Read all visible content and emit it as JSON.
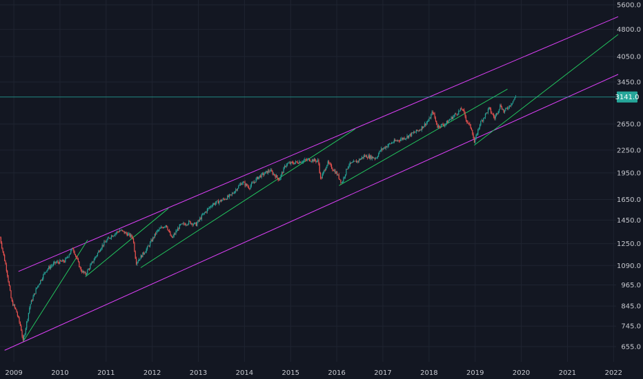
{
  "chart_data": {
    "type": "candlestick",
    "title": "",
    "xlabel": "",
    "ylabel": "",
    "y_scale": "log",
    "ylim": [
      630,
      5650
    ],
    "xlim": [
      2008.7,
      2022.1
    ],
    "grid": true,
    "background": "#131722",
    "x_ticks": [
      "2009",
      "2010",
      "2011",
      "2012",
      "2013",
      "2014",
      "2015",
      "2016",
      "2017",
      "2018",
      "2019",
      "2020",
      "2021",
      "2022"
    ],
    "y_ticks": [
      "655.0",
      "745.0",
      "845.0",
      "965.0",
      "1090.0",
      "1250.0",
      "1450.0",
      "1650.0",
      "1950.0",
      "2250.0",
      "2650.0",
      "3450.0",
      "4050.0",
      "4800.0",
      "5600.0"
    ],
    "current_price": {
      "label": "3141.0",
      "value": 3141,
      "color": "#26a69a"
    },
    "colors": {
      "up": "#26a69a",
      "down": "#ef5350",
      "channel": "#e040fb",
      "trend": "#22c55e"
    },
    "price_path": [
      [
        2008.7,
        1300
      ],
      [
        2008.85,
        1050
      ],
      [
        2008.95,
        870
      ],
      [
        2009.05,
        820
      ],
      [
        2009.15,
        740
      ],
      [
        2009.2,
        676
      ],
      [
        2009.35,
        850
      ],
      [
        2009.5,
        950
      ],
      [
        2009.7,
        1060
      ],
      [
        2009.9,
        1110
      ],
      [
        2010.1,
        1120
      ],
      [
        2010.28,
        1217
      ],
      [
        2010.45,
        1060
      ],
      [
        2010.55,
        1030
      ],
      [
        2010.7,
        1110
      ],
      [
        2010.9,
        1230
      ],
      [
        2011.1,
        1310
      ],
      [
        2011.3,
        1360
      ],
      [
        2011.45,
        1330
      ],
      [
        2011.58,
        1300
      ],
      [
        2011.65,
        1110
      ],
      [
        2011.75,
        1150
      ],
      [
        2011.9,
        1220
      ],
      [
        2012.1,
        1350
      ],
      [
        2012.3,
        1410
      ],
      [
        2012.42,
        1290
      ],
      [
        2012.6,
        1400
      ],
      [
        2012.8,
        1430
      ],
      [
        2012.95,
        1410
      ],
      [
        2013.1,
        1500
      ],
      [
        2013.3,
        1600
      ],
      [
        2013.5,
        1640
      ],
      [
        2013.7,
        1690
      ],
      [
        2013.95,
        1840
      ],
      [
        2014.1,
        1780
      ],
      [
        2014.3,
        1900
      ],
      [
        2014.55,
        1980
      ],
      [
        2014.75,
        1870
      ],
      [
        2014.9,
        2060
      ],
      [
        2015.1,
        2080
      ],
      [
        2015.4,
        2120
      ],
      [
        2015.6,
        2100
      ],
      [
        2015.65,
        1870
      ],
      [
        2015.8,
        2080
      ],
      [
        2016.0,
        1940
      ],
      [
        2016.11,
        1830
      ],
      [
        2016.25,
        2050
      ],
      [
        2016.45,
        2100
      ],
      [
        2016.6,
        2170
      ],
      [
        2016.85,
        2140
      ],
      [
        2016.95,
        2250
      ],
      [
        2017.2,
        2360
      ],
      [
        2017.5,
        2440
      ],
      [
        2017.8,
        2560
      ],
      [
        2018.0,
        2720
      ],
      [
        2018.08,
        2870
      ],
      [
        2018.18,
        2610
      ],
      [
        2018.35,
        2650
      ],
      [
        2018.55,
        2800
      ],
      [
        2018.72,
        2920
      ],
      [
        2018.82,
        2700
      ],
      [
        2018.93,
        2560
      ],
      [
        2018.98,
        2350
      ],
      [
        2019.1,
        2650
      ],
      [
        2019.3,
        2920
      ],
      [
        2019.42,
        2750
      ],
      [
        2019.55,
        2990
      ],
      [
        2019.62,
        2860
      ],
      [
        2019.75,
        2980
      ],
      [
        2019.88,
        3141
      ]
    ],
    "trendlines": [
      {
        "color": "#e040fb",
        "from": [
          2009.1,
          1050
        ],
        "to": [
          2022.1,
          5200
        ]
      },
      {
        "color": "#e040fb",
        "from": [
          2008.8,
          640
        ],
        "to": [
          2022.1,
          3620
        ]
      },
      {
        "color": "#22c55e",
        "from": [
          2009.2,
          676
        ],
        "to": [
          2010.6,
          1280
        ]
      },
      {
        "color": "#22c55e",
        "from": [
          2010.55,
          1015
        ],
        "to": [
          2012.35,
          1560
        ]
      },
      {
        "color": "#22c55e",
        "from": [
          2011.75,
          1075
        ],
        "to": [
          2016.4,
          2570
        ]
      },
      {
        "color": "#22c55e",
        "from": [
          2016.05,
          1800
        ],
        "to": [
          2019.7,
          3300
        ]
      },
      {
        "color": "#22c55e",
        "from": [
          2018.98,
          2320
        ],
        "to": [
          2022.1,
          4650
        ]
      }
    ]
  }
}
